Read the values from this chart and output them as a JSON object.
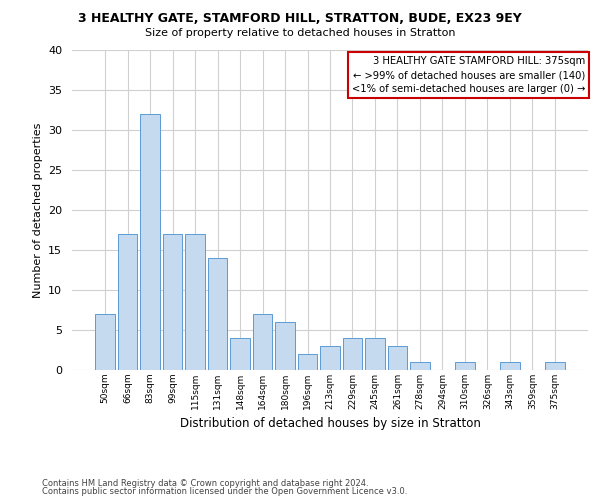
{
  "title1": "3 HEALTHY GATE, STAMFORD HILL, STRATTON, BUDE, EX23 9EY",
  "title2": "Size of property relative to detached houses in Stratton",
  "xlabel": "Distribution of detached houses by size in Stratton",
  "ylabel": "Number of detached properties",
  "categories": [
    "50sqm",
    "66sqm",
    "83sqm",
    "99sqm",
    "115sqm",
    "131sqm",
    "148sqm",
    "164sqm",
    "180sqm",
    "196sqm",
    "213sqm",
    "229sqm",
    "245sqm",
    "261sqm",
    "278sqm",
    "294sqm",
    "310sqm",
    "326sqm",
    "343sqm",
    "359sqm",
    "375sqm"
  ],
  "values": [
    7,
    17,
    32,
    17,
    17,
    14,
    4,
    7,
    6,
    2,
    3,
    4,
    4,
    3,
    1,
    0,
    1,
    0,
    1,
    0,
    1
  ],
  "bar_color": "#c5d9ef",
  "bar_edgecolor": "#5b9bd5",
  "annotation_title": "3 HEALTHY GATE STAMFORD HILL: 375sqm",
  "annotation_line2": "← >99% of detached houses are smaller (140)",
  "annotation_line3": "<1% of semi-detached houses are larger (0) →",
  "annotation_box_edgecolor": "#cc0000",
  "footer1": "Contains HM Land Registry data © Crown copyright and database right 2024.",
  "footer2": "Contains public sector information licensed under the Open Government Licence v3.0.",
  "ylim": [
    0,
    40
  ],
  "yticks": [
    0,
    5,
    10,
    15,
    20,
    25,
    30,
    35,
    40
  ],
  "background_color": "#ffffff",
  "grid_color": "#d0d0d0"
}
